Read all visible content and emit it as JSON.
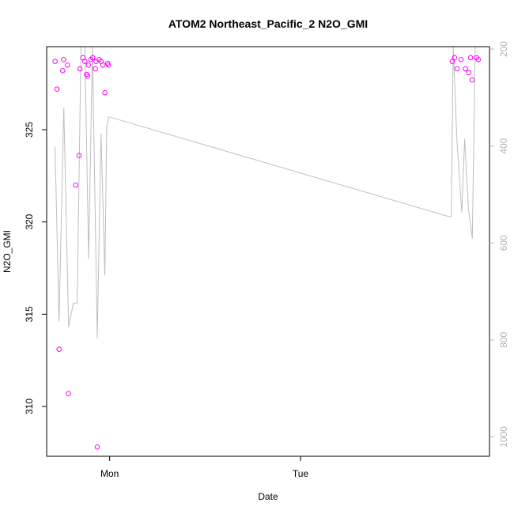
{
  "chart_data": {
    "type": "scatter",
    "title": "ATOM2 Northeast_Pacific_2 N2O_GMI",
    "xlabel": "Date",
    "ylabel": "N2O_GMI",
    "x_ticks": [
      {
        "value": 1.0,
        "label": "Mon"
      },
      {
        "value": 2.0,
        "label": "Tue"
      }
    ],
    "xlim": [
      0.67,
      2.99
    ],
    "ylim": [
      307.3,
      329.5
    ],
    "y_ticks": [
      310,
      315,
      320,
      325
    ],
    "y2lim": [
      1040,
      195
    ],
    "y2_ticks": [
      200,
      400,
      600,
      800,
      1000
    ],
    "grid": false,
    "colors": {
      "points": "#ff00ff",
      "line": "#bebebe",
      "axis": "#000000",
      "right_axis": "#b3b3b3"
    },
    "series": [
      {
        "kind": "points",
        "axis": "left",
        "points": [
          [
            0.714,
            328.7
          ],
          [
            0.724,
            327.2
          ],
          [
            0.735,
            313.1
          ],
          [
            0.754,
            328.2
          ],
          [
            0.759,
            328.8
          ],
          [
            0.779,
            328.5
          ],
          [
            0.784,
            310.7
          ],
          [
            0.822,
            322.0
          ],
          [
            0.84,
            323.6
          ],
          [
            0.845,
            328.3
          ],
          [
            0.86,
            328.9
          ],
          [
            0.87,
            328.7
          ],
          [
            0.879,
            328.0
          ],
          [
            0.884,
            327.9
          ],
          [
            0.889,
            328.5
          ],
          [
            0.901,
            328.8
          ],
          [
            0.911,
            328.9
          ],
          [
            0.925,
            328.3
          ],
          [
            0.929,
            328.7
          ],
          [
            0.935,
            307.8
          ],
          [
            0.945,
            328.8
          ],
          [
            0.955,
            328.7
          ],
          [
            0.965,
            328.5
          ],
          [
            0.975,
            327.0
          ],
          [
            0.99,
            328.6
          ],
          [
            0.994,
            328.5
          ],
          [
            2.795,
            328.7
          ],
          [
            2.807,
            328.9
          ],
          [
            2.82,
            328.3
          ],
          [
            2.841,
            328.8
          ],
          [
            2.864,
            328.3
          ],
          [
            2.881,
            328.1
          ],
          [
            2.891,
            328.9
          ],
          [
            2.899,
            327.7
          ],
          [
            2.922,
            328.9
          ],
          [
            2.931,
            328.8
          ]
        ]
      },
      {
        "kind": "line",
        "axis": "left",
        "points": [
          [
            0.714,
            324.1
          ],
          [
            0.735,
            314.6
          ],
          [
            0.76,
            326.2
          ],
          [
            0.785,
            314.3
          ],
          [
            0.81,
            315.6
          ],
          [
            0.83,
            315.6
          ],
          [
            0.85,
            329.5
          ],
          [
            0.87,
            329.5
          ],
          [
            0.89,
            318.0
          ],
          [
            0.91,
            329.5
          ],
          [
            0.935,
            313.7
          ],
          [
            0.955,
            324.8
          ],
          [
            0.975,
            317.1
          ],
          [
            0.985,
            325.2
          ],
          [
            0.996,
            325.7
          ],
          [
            2.775,
            320.3
          ],
          [
            2.79,
            320.3
          ],
          [
            2.8,
            329.5
          ],
          [
            2.82,
            324.3
          ],
          [
            2.845,
            320.5
          ],
          [
            2.86,
            324.5
          ],
          [
            2.88,
            320.7
          ],
          [
            2.9,
            319.1
          ],
          [
            2.915,
            329.5
          ]
        ]
      }
    ]
  }
}
